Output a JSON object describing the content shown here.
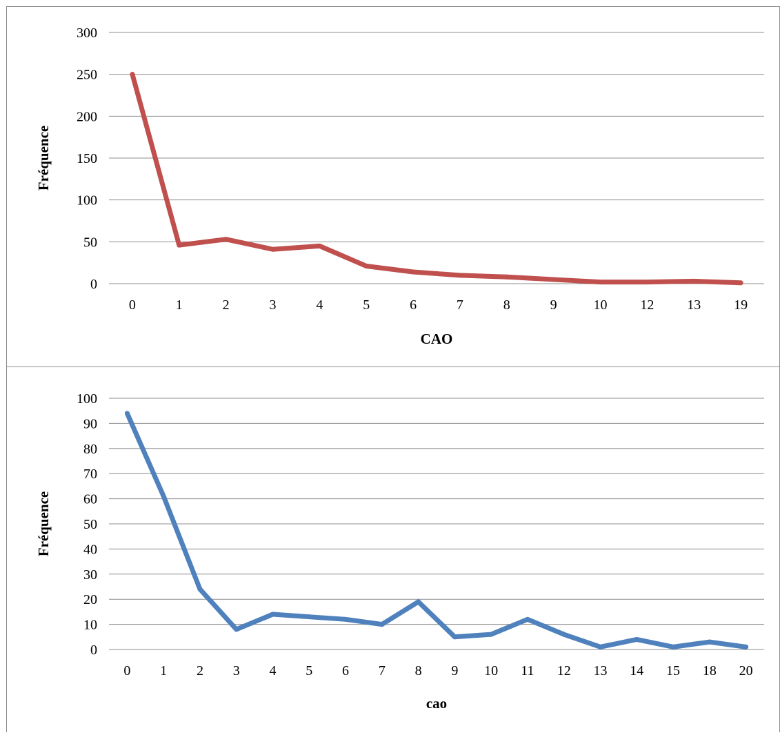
{
  "chart_data": [
    {
      "type": "line",
      "title": "",
      "xlabel": "CAO",
      "ylabel": "Fréquence",
      "categories": [
        "0",
        "1",
        "2",
        "3",
        "4",
        "5",
        "6",
        "7",
        "8",
        "9",
        "10",
        "12",
        "13",
        "19"
      ],
      "series": [
        {
          "values": [
            250,
            46,
            53,
            41,
            45,
            21,
            14,
            10,
            8,
            5,
            2,
            2,
            3,
            1
          ]
        }
      ],
      "ylim": [
        0,
        300
      ],
      "yticks": [
        "0",
        "50",
        "100",
        "150",
        "200",
        "250",
        "300"
      ],
      "grid": true,
      "color": "#c0504d"
    },
    {
      "type": "line",
      "title": "",
      "xlabel": "cao",
      "ylabel": "Fréquence",
      "categories": [
        "0",
        "1",
        "2",
        "3",
        "4",
        "5",
        "6",
        "7",
        "8",
        "9",
        "10",
        "11",
        "12",
        "13",
        "14",
        "15",
        "18",
        "20"
      ],
      "series": [
        {
          "values": [
            94,
            61,
            24,
            8,
            14,
            13,
            12,
            10,
            19,
            5,
            6,
            12,
            6,
            1,
            4,
            1,
            3,
            1
          ]
        }
      ],
      "ylim": [
        0,
        100
      ],
      "yticks": [
        "0",
        "10",
        "20",
        "30",
        "40",
        "50",
        "60",
        "70",
        "80",
        "90",
        "100"
      ],
      "grid": true,
      "color": "#4f81bd"
    }
  ]
}
